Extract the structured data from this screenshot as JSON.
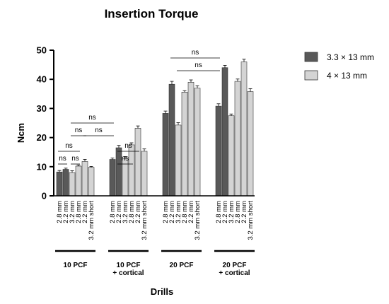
{
  "chart_data": {
    "type": "bar",
    "title": "Insertion Torque",
    "xlabel": "Drills",
    "ylabel": "Ncm",
    "ylim": [
      0,
      50
    ],
    "yticks": [
      0,
      10,
      20,
      30,
      40,
      50
    ],
    "legend_position": "top-right",
    "series": [
      {
        "name": "3.3 × 13 mm",
        "color": "#595959"
      },
      {
        "name": "4 × 13 mm",
        "color": "#d4d4d4"
      }
    ],
    "groups": [
      {
        "label_lines": [
          "10 PCF"
        ],
        "bars": [
          {
            "category": "2.8 mm",
            "series": 0,
            "value": 8.2,
            "error": 0.5
          },
          {
            "category": "2.2 mm",
            "series": 0,
            "value": 9.1,
            "error": 0.4
          },
          {
            "category": "3.2 mm",
            "series": 1,
            "value": 8.0,
            "error": 0.6
          },
          {
            "category": "2.8 mm",
            "series": 1,
            "value": 10.2,
            "error": 0.4
          },
          {
            "category": "2.2 mm",
            "series": 1,
            "value": 11.8,
            "error": 0.7
          },
          {
            "category": "3.2 mm short",
            "series": 1,
            "value": 9.8,
            "error": 0.3
          }
        ]
      },
      {
        "label_lines": [
          "10 PCF",
          "+ cortical"
        ],
        "bars": [
          {
            "category": "2.8 mm",
            "series": 0,
            "value": 12.5,
            "error": 0.5
          },
          {
            "category": "2.2 mm",
            "series": 0,
            "value": 16.5,
            "error": 0.8
          },
          {
            "category": "3.2 mm",
            "series": 1,
            "value": 12.8,
            "error": 0.7
          },
          {
            "category": "2.8 mm",
            "series": 1,
            "value": 17.5,
            "error": 0.7
          },
          {
            "category": "2.2 mm",
            "series": 1,
            "value": 23.2,
            "error": 0.8
          },
          {
            "category": "3.2 mm short",
            "series": 1,
            "value": 15.3,
            "error": 0.8
          }
        ]
      },
      {
        "label_lines": [
          "20 PCF"
        ],
        "bars": [
          {
            "category": "2.8 mm",
            "series": 0,
            "value": 28.3,
            "error": 0.8
          },
          {
            "category": "2.2 mm",
            "series": 0,
            "value": 38.3,
            "error": 1.0
          },
          {
            "category": "3.2 mm",
            "series": 1,
            "value": 24.3,
            "error": 0.8
          },
          {
            "category": "2.8 mm",
            "series": 1,
            "value": 35.6,
            "error": 0.5
          },
          {
            "category": "2.2 mm",
            "series": 1,
            "value": 39.0,
            "error": 0.8
          },
          {
            "category": "3.2 mm short",
            "series": 1,
            "value": 37.0,
            "error": 0.8
          }
        ]
      },
      {
        "label_lines": [
          "20 PCF",
          "+ cortical"
        ],
        "bars": [
          {
            "category": "2.8 mm",
            "series": 0,
            "value": 30.8,
            "error": 0.8
          },
          {
            "category": "2.2 mm",
            "series": 0,
            "value": 44.0,
            "error": 0.8
          },
          {
            "category": "3.2 mm",
            "series": 1,
            "value": 27.5,
            "error": 0.6
          },
          {
            "category": "2.8 mm",
            "series": 1,
            "value": 39.3,
            "error": 0.8
          },
          {
            "category": "2.2 mm",
            "series": 1,
            "value": 46.0,
            "error": 0.9
          },
          {
            "category": "3.2 mm short",
            "series": 1,
            "value": 35.8,
            "error": 1.0
          }
        ]
      }
    ],
    "annotations": [
      {
        "text": "ns",
        "from_bar": 0,
        "to_bar": 1,
        "level": 1
      },
      {
        "text": "ns",
        "from_bar": 2,
        "to_bar": 3,
        "level": 1
      },
      {
        "text": "ns",
        "from_bar": 0,
        "to_bar": 3,
        "level": 2
      },
      {
        "text": "ns",
        "from_bar": 2,
        "to_bar": 4,
        "level": 3
      },
      {
        "text": "ns",
        "from_bar": 4,
        "to_bar": 6,
        "level": 3
      },
      {
        "text": "ns",
        "from_bar": 2,
        "to_bar": 6,
        "level": 4
      },
      {
        "text": "ns",
        "from_bar": 7,
        "to_bar": 9,
        "level": 1
      },
      {
        "text": "ns",
        "from_bar": 7,
        "to_bar": 10,
        "level": 2
      },
      {
        "text": "ns",
        "from_bar": 14,
        "to_bar": 18,
        "level": 1
      },
      {
        "text": "ns",
        "from_bar": 13,
        "to_bar": 18,
        "level": 2
      }
    ]
  }
}
